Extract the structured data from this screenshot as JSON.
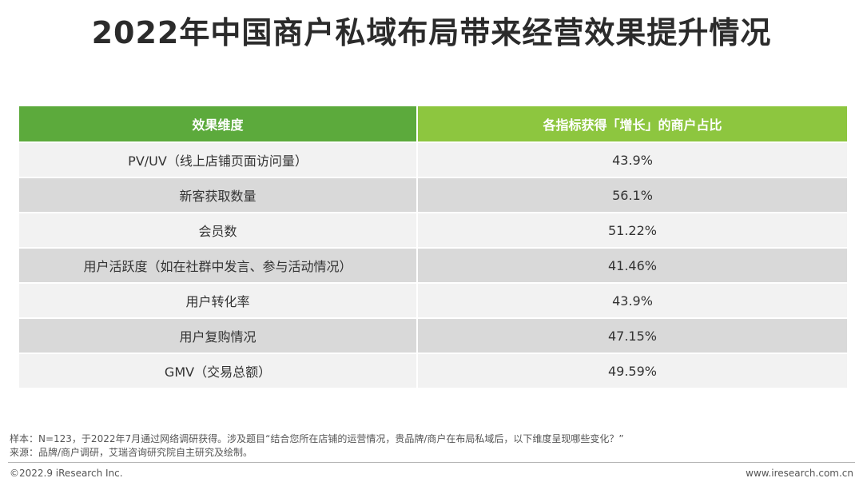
{
  "title": "2022年中国商户私域布局带来经营效果提升情况",
  "table": {
    "header": {
      "dimension": "效果维度",
      "share": "各指标获得「增长」的商户占比"
    },
    "rows": [
      {
        "dimension": "PV/UV（线上店铺页面访问量）",
        "share": "43.9%"
      },
      {
        "dimension": "新客获取数量",
        "share": "56.1%"
      },
      {
        "dimension": "会员数",
        "share": "51.22%"
      },
      {
        "dimension": "用户活跃度（如在社群中发言、参与活动情况）",
        "share": "41.46%"
      },
      {
        "dimension": "用户转化率",
        "share": "43.9%"
      },
      {
        "dimension": "用户复购情况",
        "share": "47.15%"
      },
      {
        "dimension": "GMV（交易总额）",
        "share": "49.59%"
      }
    ]
  },
  "notes": {
    "sample": "样本：N=123，于2022年7月通过网络调研获得。涉及题目“结合您所在店铺的运营情况，贵品牌/商户在布局私域后，以下维度呈现哪些变化？”",
    "source": "来源：品牌/商户调研，艾瑞咨询研究院自主研究及绘制。"
  },
  "footer": {
    "copyright": "©2022.9 iResearch Inc.",
    "website": "www.iresearch.com.cn"
  },
  "colors": {
    "header_left": "#5caa3c",
    "header_right": "#8dc63f",
    "row_light": "#f2f2f2",
    "row_dark": "#d9d9d9"
  }
}
